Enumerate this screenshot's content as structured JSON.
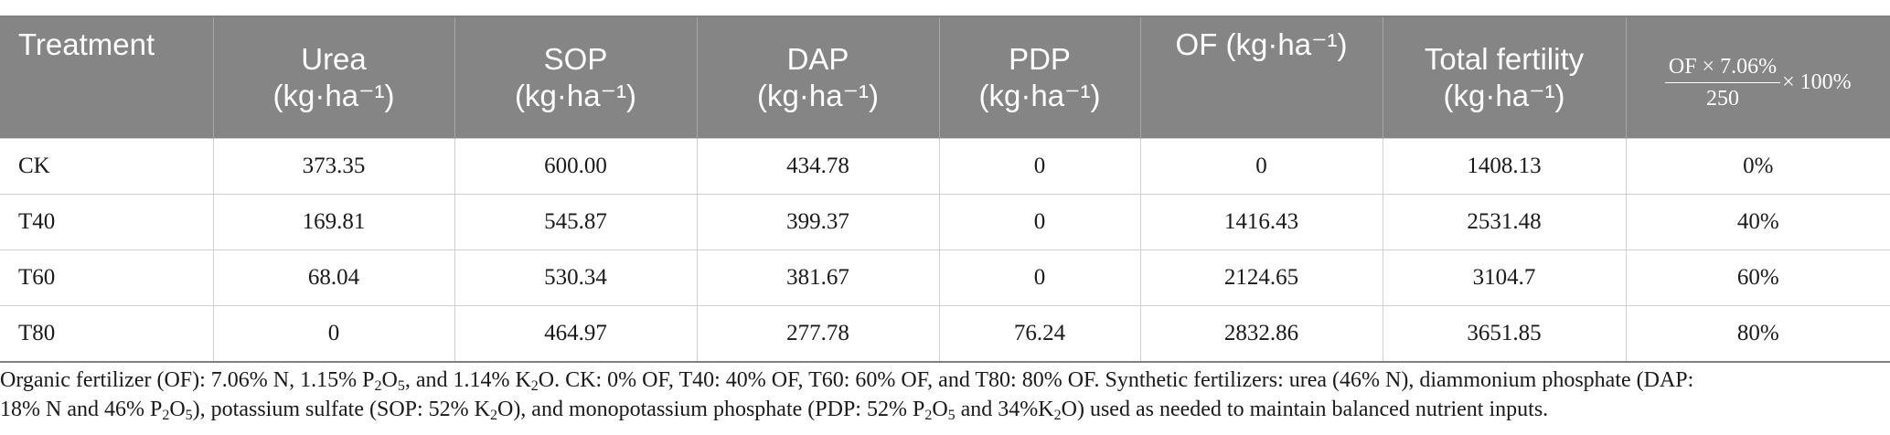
{
  "table": {
    "headers": [
      {
        "line1": "Treatment",
        "line2": ""
      },
      {
        "line1": "Urea",
        "line2": "(kg·ha⁻¹)"
      },
      {
        "line1": "SOP",
        "line2": "(kg·ha⁻¹)"
      },
      {
        "line1": "DAP",
        "line2": "(kg·ha⁻¹)"
      },
      {
        "line1": "PDP",
        "line2": "(kg·ha⁻¹)"
      },
      {
        "line1": "OF (kg·ha⁻¹)",
        "line2": ""
      },
      {
        "line1": "Total fertility",
        "line2": "(kg·ha⁻¹)"
      }
    ],
    "formula": {
      "numerator": "OF × 7.06%",
      "denominator": "250",
      "suffix": "× 100%"
    },
    "rows": [
      [
        "CK",
        "373.35",
        "600.00",
        "434.78",
        "0",
        "0",
        "1408.13",
        "0%"
      ],
      [
        "T40",
        "169.81",
        "545.87",
        "399.37",
        "0",
        "1416.43",
        "2531.48",
        "40%"
      ],
      [
        "T60",
        "68.04",
        "530.34",
        "381.67",
        "0",
        "2124.65",
        "3104.7",
        "60%"
      ],
      [
        "T80",
        "0",
        "464.97",
        "277.78",
        "76.24",
        "2832.86",
        "3651.85",
        "80%"
      ]
    ]
  },
  "footnote": {
    "s1": "Organic fertilizer (OF): 7.06% N, 1.15% P",
    "s2": "O",
    "s3": ", and 1.14% K",
    "s4": "O. CK: 0% OF, T40: 40% OF, T60: 60% OF, and T80: 80% OF. Synthetic fertilizers: urea (46% N), diammonium phosphate (DAP:",
    "s5": "18% N and 46% P",
    "s6": "O",
    "s7": "), potassium sulfate (SOP: 52% K",
    "s8": "O), and monopotassium phosphate (PDP: 52% P",
    "s9": "O",
    "s10": " and 34%K",
    "s11": "O) used as needed to maintain balanced nutrient inputs.",
    "sub2": "2",
    "sub5": "5"
  }
}
